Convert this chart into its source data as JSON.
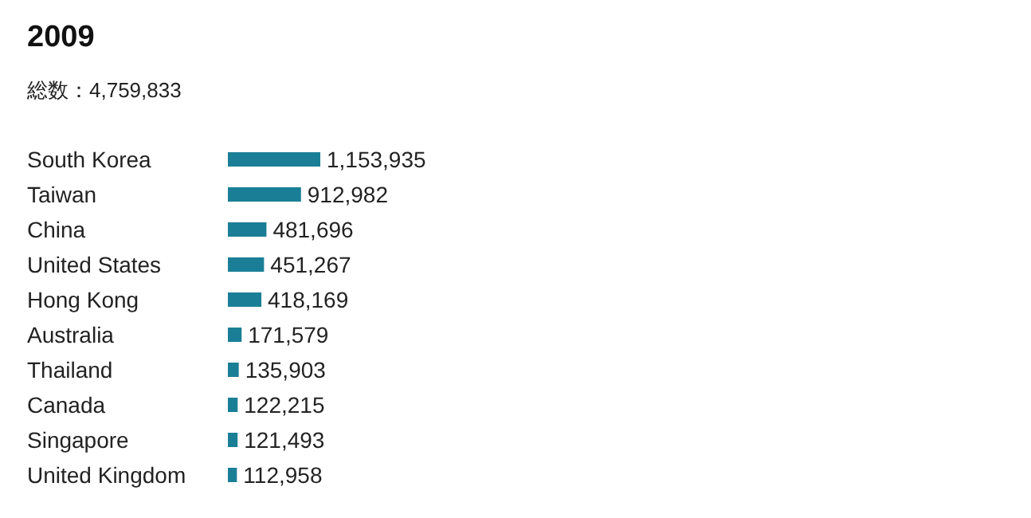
{
  "chart_data": {
    "type": "bar",
    "orientation": "horizontal",
    "title": "2009",
    "subtitle": "総数：4,759,833",
    "categories": [
      "South Korea",
      "Taiwan",
      "China",
      "United States",
      "Hong Kong",
      "Australia",
      "Thailand",
      "Canada",
      "Singapore",
      "United Kingdom"
    ],
    "values": [
      1153935,
      912982,
      481696,
      451267,
      418169,
      171579,
      135903,
      122215,
      121493,
      112958
    ],
    "value_labels": [
      "1,153,935",
      "912,982",
      "481,696",
      "451,267",
      "418,169",
      "171,579",
      "135,903",
      "122,215",
      "121,493",
      "112,958"
    ],
    "color": "#1a7f96"
  }
}
